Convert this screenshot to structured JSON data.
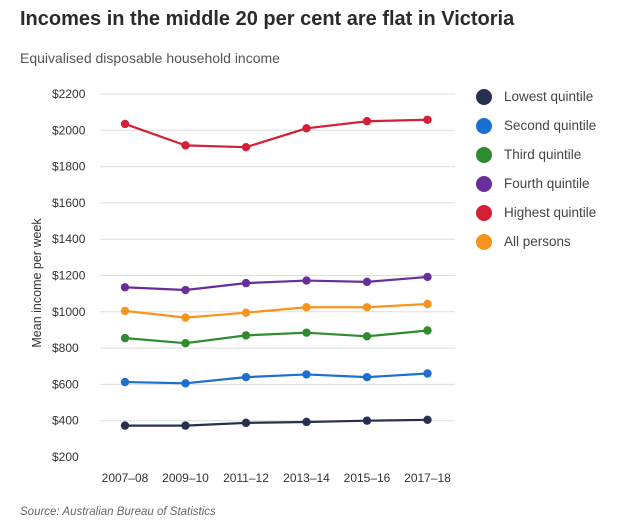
{
  "chart_data": {
    "type": "line",
    "title": "Incomes in the middle 20 per cent are flat in Victoria",
    "subtitle": "Equivalised disposable household income",
    "xlabel": "",
    "ylabel": "Mean income per week",
    "categories": [
      "2007–08",
      "2009–10",
      "2011–12",
      "2013–14",
      "2015–16",
      "2017–18"
    ],
    "ylim": [
      200,
      2200
    ],
    "yticks": [
      200,
      400,
      600,
      800,
      1000,
      1200,
      1400,
      1600,
      1800,
      2000,
      2200
    ],
    "ytick_labels": [
      "$200",
      "$400",
      "$600",
      "$800",
      "$1000",
      "$1200",
      "$1400",
      "$1600",
      "$1800",
      "$2000",
      "$2200"
    ],
    "grid": "horizontal",
    "legend_position": "right",
    "series": [
      {
        "name": "Lowest quintile",
        "color": "#27304f",
        "values": [
          373,
          373,
          388,
          393,
          400,
          405
        ]
      },
      {
        "name": "Second quintile",
        "color": "#1a6fd1",
        "values": [
          613,
          606,
          640,
          655,
          640,
          660
        ]
      },
      {
        "name": "Third quintile",
        "color": "#2e8b2e",
        "values": [
          855,
          827,
          870,
          885,
          865,
          897
        ]
      },
      {
        "name": "Fourth quintile",
        "color": "#6a2e9b",
        "values": [
          1135,
          1120,
          1158,
          1172,
          1165,
          1192
        ]
      },
      {
        "name": "Highest quintile",
        "color": "#d41f36",
        "values": [
          2035,
          1917,
          1907,
          2011,
          2050,
          2058
        ]
      },
      {
        "name": "All persons",
        "color": "#f7941d",
        "values": [
          1005,
          968,
          995,
          1025,
          1025,
          1043
        ]
      }
    ]
  },
  "source": "Source: Australian Bureau of Statistics"
}
